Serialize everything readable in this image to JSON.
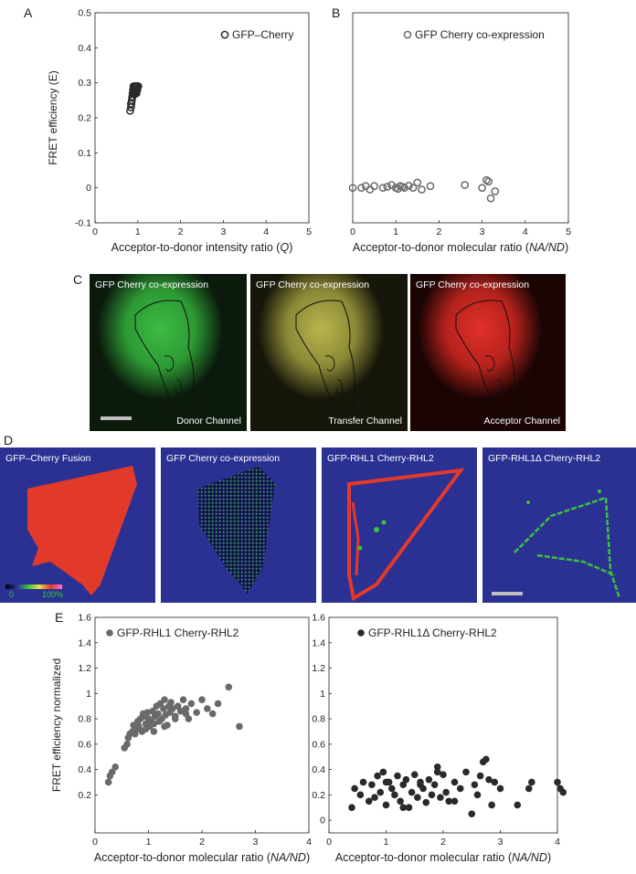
{
  "panel_labels": {
    "A": "A",
    "B": "B",
    "C": "C",
    "D": "D",
    "E": "E"
  },
  "colors": {
    "navy": "#2b3192",
    "green": "#3cc040",
    "red": "#e23a2a",
    "yellow": "#c8c45a",
    "point_dark": "#2a2a2a",
    "point_gray": "#6a6a6a"
  },
  "panel_c": {
    "donor": {
      "title": "GFP Cherry co-expression",
      "caption": "Donor Channel"
    },
    "transfer": {
      "title": "GFP Cherry co-expression",
      "caption": "Transfer Channel"
    },
    "acceptor": {
      "title": "GFP Cherry co-expression",
      "caption": "Acceptor Channel"
    }
  },
  "panel_d": {
    "fusion": {
      "title": "GFP–Cherry Fusion"
    },
    "coexp": {
      "title": "GFP Cherry co-expression"
    },
    "rhl1": {
      "title": "GFP-RHL1  Cherry-RHL2"
    },
    "rhl1d": {
      "title": "GFP-RHL1Δ Cherry-RHL2"
    },
    "scale_min": "0",
    "scale_max": "100%"
  },
  "chart_data": [
    {
      "id": "A",
      "type": "scatter",
      "xlabel": "Acceptor-to-donor intensity ratio (",
      "xlabel_italic": "Q",
      "xlabel_end": ")",
      "ylabel": "FRET efficiency (E)",
      "xlim": [
        0,
        5
      ],
      "ylim": [
        -0.1,
        0.5
      ],
      "xticks": [
        "0",
        "1",
        "2",
        "3",
        "4",
        "5"
      ],
      "yticks": [
        "-0.1",
        "0",
        "0.1",
        "0.2",
        "0.3",
        "0.4",
        "0.5"
      ],
      "legend": "top-right",
      "series": [
        {
          "name": "GFP–Cherry",
          "marker": "open-circle",
          "x": [
            0.82,
            0.84,
            0.85,
            0.86,
            0.87,
            0.88,
            0.89,
            0.9,
            0.91,
            0.92,
            0.93,
            0.94,
            0.95,
            0.96,
            0.97,
            0.98,
            0.99,
            1.0,
            1.01,
            0.88,
            0.9,
            0.92,
            0.94,
            0.96,
            0.86,
            0.84,
            0.9,
            0.93,
            0.97,
            1.0
          ],
          "y": [
            0.22,
            0.23,
            0.24,
            0.25,
            0.26,
            0.27,
            0.28,
            0.28,
            0.29,
            0.27,
            0.29,
            0.28,
            0.29,
            0.28,
            0.29,
            0.29,
            0.28,
            0.29,
            0.29,
            0.26,
            0.27,
            0.28,
            0.27,
            0.28,
            0.25,
            0.24,
            0.29,
            0.28,
            0.27,
            0.29
          ]
        }
      ]
    },
    {
      "id": "B",
      "type": "scatter",
      "xlabel": "Acceptor-to-donor molecular ratio (",
      "xlabel_italic": "NA/ND",
      "xlabel_end": ")",
      "ylabel": "",
      "xlim": [
        0,
        5
      ],
      "ylim": [
        -0.1,
        0.5
      ],
      "xticks": [
        "0",
        "1",
        "2",
        "3",
        "4",
        "5"
      ],
      "yticks": [],
      "legend": "top-right",
      "series": [
        {
          "name": "GFP Cherry co-expression",
          "marker": "open-circle",
          "x": [
            0.0,
            0.2,
            0.3,
            0.4,
            0.5,
            0.7,
            0.8,
            0.9,
            1.0,
            1.05,
            1.1,
            1.15,
            1.2,
            1.3,
            1.4,
            1.5,
            1.6,
            1.8,
            2.6,
            3.0,
            3.1,
            3.15,
            3.2,
            3.3
          ],
          "y": [
            0.0,
            0.0,
            0.005,
            -0.005,
            0.005,
            0.0,
            0.003,
            0.008,
            0.0,
            -0.003,
            0.005,
            0.003,
            0.0,
            0.006,
            0.0,
            0.015,
            -0.005,
            0.005,
            0.008,
            0.0,
            0.022,
            0.018,
            -0.03,
            -0.01
          ]
        }
      ]
    },
    {
      "id": "E1",
      "type": "scatter",
      "xlabel": "Acceptor-to-donor molecular ratio (",
      "xlabel_italic": "NA/ND",
      "xlabel_end": ")",
      "ylabel": "FRET efficiency normalized",
      "xlim": [
        0,
        4
      ],
      "ylim": [
        -0.1,
        1.6
      ],
      "xticks": [
        "0",
        "1",
        "2",
        "3",
        "4"
      ],
      "yticks": [
        "0.2",
        "0.4",
        "0.6",
        "0.8",
        "1",
        "1.2",
        "1.4",
        "1.6"
      ],
      "legend": "top-left",
      "series": [
        {
          "name": "GFP-RHL1 Cherry-RHL2",
          "marker": "filled-circle",
          "x": [
            0.25,
            0.28,
            0.32,
            0.38,
            0.55,
            0.6,
            0.62,
            0.65,
            0.7,
            0.72,
            0.75,
            0.78,
            0.8,
            0.82,
            0.85,
            0.88,
            0.9,
            0.92,
            0.95,
            0.98,
            1.0,
            1.02,
            1.05,
            1.08,
            1.1,
            1.12,
            1.15,
            1.18,
            1.2,
            1.22,
            1.25,
            1.28,
            1.3,
            1.32,
            1.35,
            1.38,
            1.4,
            1.42,
            1.45,
            1.5,
            1.55,
            1.6,
            1.65,
            1.7,
            1.75,
            1.8,
            1.9,
            2.0,
            2.1,
            2.2,
            2.3,
            2.5,
            2.7,
            0.95,
            1.1,
            1.3,
            1.5,
            1.7
          ],
          "y": [
            0.3,
            0.35,
            0.38,
            0.42,
            0.57,
            0.6,
            0.65,
            0.68,
            0.7,
            0.75,
            0.68,
            0.72,
            0.78,
            0.74,
            0.8,
            0.7,
            0.84,
            0.82,
            0.76,
            0.85,
            0.8,
            0.74,
            0.78,
            0.86,
            0.7,
            0.82,
            0.9,
            0.84,
            0.78,
            0.92,
            0.8,
            0.88,
            0.95,
            0.83,
            0.75,
            0.9,
            0.85,
            0.93,
            0.88,
            0.82,
            0.9,
            0.86,
            0.95,
            0.88,
            0.8,
            0.92,
            0.85,
            0.95,
            0.88,
            0.84,
            0.92,
            1.05,
            0.74,
            0.72,
            0.76,
            0.74,
            0.8,
            0.84
          ]
        }
      ]
    },
    {
      "id": "E2",
      "type": "scatter",
      "xlabel": "Acceptor-to-donor molecular ratio (",
      "xlabel_italic": "NA/ND",
      "xlabel_end": ")",
      "ylabel": "",
      "xlim": [
        0,
        4
      ],
      "ylim": [
        -0.1,
        1.6
      ],
      "xticks": [
        "0",
        "1",
        "2",
        "3",
        "4"
      ],
      "yticks": [
        "0",
        "0.2",
        "0.4",
        "0.6",
        "0.8",
        "1",
        "1.2",
        "1.4",
        "1.6"
      ],
      "legend": "top-left",
      "series": [
        {
          "name": "GFP-RHL1Δ  Cherry-RHL2",
          "marker": "filled-circle",
          "x": [
            0.4,
            0.45,
            0.55,
            0.6,
            0.7,
            0.75,
            0.8,
            0.85,
            0.9,
            0.95,
            1.0,
            1.05,
            1.1,
            1.15,
            1.2,
            1.25,
            1.3,
            1.35,
            1.4,
            1.45,
            1.5,
            1.55,
            1.6,
            1.65,
            1.7,
            1.75,
            1.8,
            1.85,
            1.9,
            1.95,
            2.0,
            2.05,
            2.1,
            2.2,
            2.3,
            2.4,
            2.5,
            2.55,
            2.6,
            2.65,
            2.7,
            2.75,
            2.8,
            2.85,
            2.9,
            3.0,
            3.3,
            3.5,
            3.55,
            4.0,
            4.05,
            4.1,
            1.0,
            1.3,
            1.6,
            1.9,
            2.2
          ],
          "y": [
            0.1,
            0.25,
            0.2,
            0.3,
            0.15,
            0.28,
            0.18,
            0.35,
            0.22,
            0.38,
            0.12,
            0.3,
            0.25,
            0.2,
            0.35,
            0.15,
            0.28,
            0.32,
            0.1,
            0.22,
            0.36,
            0.18,
            0.3,
            0.25,
            0.14,
            0.32,
            0.2,
            0.28,
            0.42,
            0.18,
            0.36,
            0.22,
            0.15,
            0.3,
            0.25,
            0.38,
            0.05,
            0.28,
            0.2,
            0.35,
            0.46,
            0.48,
            0.32,
            0.12,
            0.3,
            0.25,
            0.12,
            0.25,
            0.3,
            0.3,
            0.25,
            0.22,
            0.3,
            0.1,
            0.28,
            0.38,
            0.15
          ]
        }
      ]
    }
  ]
}
